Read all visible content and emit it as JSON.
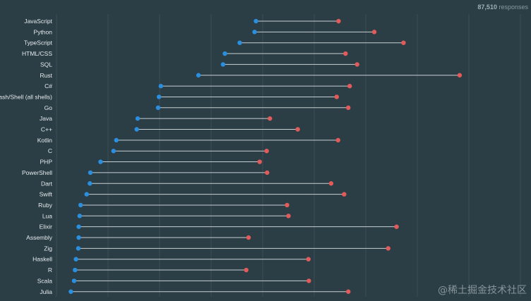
{
  "header": {
    "responses_count": "87,510",
    "responses_label": "responses"
  },
  "watermark": "@稀土掘金技术社区",
  "colors": {
    "background": "#2b3d45",
    "start_dot": "#2b8fe0",
    "end_dot": "#e25b5b",
    "connector": "#c7d0d3",
    "grid": "#3b4e56",
    "label": "#e6ecee"
  },
  "chart_data": {
    "type": "dumbbell",
    "xlim": [
      0,
      100
    ],
    "grid": true,
    "categories": [
      "JavaScript",
      "Python",
      "TypeScript",
      "HTML/CSS",
      "SQL",
      "Rust",
      "C#",
      "Bash/Shell (all shells)",
      "Go",
      "Java",
      "C++",
      "Kotlin",
      "C",
      "PHP",
      "PowerShell",
      "Dart",
      "Swift",
      "Ruby",
      "Lua",
      "Elixir",
      "Assembly",
      "Zig",
      "Haskell",
      "R",
      "Scala",
      "Julia"
    ],
    "series": [
      {
        "values": [
          43.0,
          42.7,
          39.5,
          36.3,
          35.9,
          30.6,
          22.5,
          22.1,
          21.9,
          17.5,
          17.3,
          12.9,
          12.3,
          9.5,
          7.3,
          7.2,
          6.5,
          5.2,
          5.0,
          4.8,
          4.8,
          4.7,
          4.2,
          4.0,
          3.8,
          3.1
        ],
        "role": "start"
      },
      {
        "values": [
          60.8,
          68.5,
          74.8,
          62.3,
          64.8,
          86.9,
          63.2,
          60.4,
          62.9,
          46.0,
          52.0,
          60.7,
          45.3,
          43.8,
          45.4,
          59.2,
          62.0,
          49.7,
          50.0,
          73.3,
          41.4,
          71.5,
          54.3,
          40.9,
          54.4,
          62.9
        ],
        "role": "end"
      }
    ]
  }
}
